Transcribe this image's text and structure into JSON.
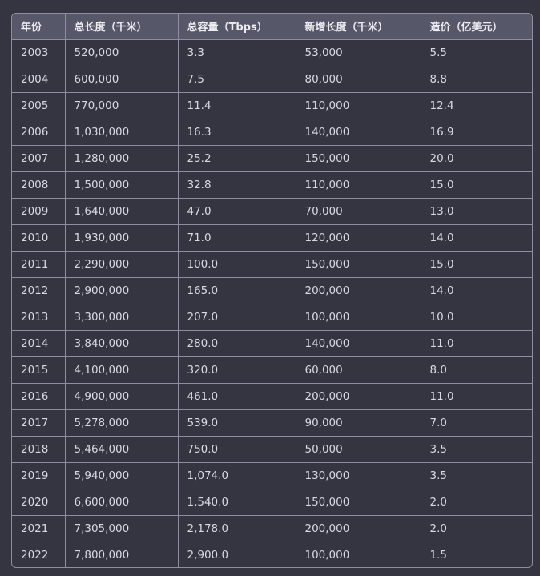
{
  "table": {
    "headers": [
      "年份",
      "总长度（千米）",
      "总容量（Tbps）",
      "新增长度（千米）",
      "造价（亿美元）"
    ],
    "rows": [
      [
        "2003",
        "520,000",
        "3.3",
        "53,000",
        "5.5"
      ],
      [
        "2004",
        "600,000",
        "7.5",
        "80,000",
        "8.8"
      ],
      [
        "2005",
        "770,000",
        "11.4",
        "110,000",
        "12.4"
      ],
      [
        "2006",
        "1,030,000",
        "16.3",
        "140,000",
        "16.9"
      ],
      [
        "2007",
        "1,280,000",
        "25.2",
        "150,000",
        "20.0"
      ],
      [
        "2008",
        "1,500,000",
        "32.8",
        "110,000",
        "15.0"
      ],
      [
        "2009",
        "1,640,000",
        "47.0",
        "70,000",
        "13.0"
      ],
      [
        "2010",
        "1,930,000",
        "71.0",
        "120,000",
        "14.0"
      ],
      [
        "2011",
        "2,290,000",
        "100.0",
        "150,000",
        "15.0"
      ],
      [
        "2012",
        "2,900,000",
        "165.0",
        "200,000",
        "14.0"
      ],
      [
        "2013",
        "3,300,000",
        "207.0",
        "100,000",
        "10.0"
      ],
      [
        "2014",
        "3,840,000",
        "280.0",
        "140,000",
        "11.0"
      ],
      [
        "2015",
        "4,100,000",
        "320.0",
        "60,000",
        "8.0"
      ],
      [
        "2016",
        "4,900,000",
        "461.0",
        "200,000",
        "11.0"
      ],
      [
        "2017",
        "5,278,000",
        "539.0",
        "90,000",
        "7.0"
      ],
      [
        "2018",
        "5,464,000",
        "750.0",
        "50,000",
        "3.5"
      ],
      [
        "2019",
        "5,940,000",
        "1,074.0",
        "130,000",
        "3.5"
      ],
      [
        "2020",
        "6,600,000",
        "1,540.0",
        "150,000",
        "2.0"
      ],
      [
        "2021",
        "7,305,000",
        "2,178.0",
        "200,000",
        "2.0"
      ],
      [
        "2022",
        "7,800,000",
        "2,900.0",
        "100,000",
        "1.5"
      ]
    ]
  }
}
